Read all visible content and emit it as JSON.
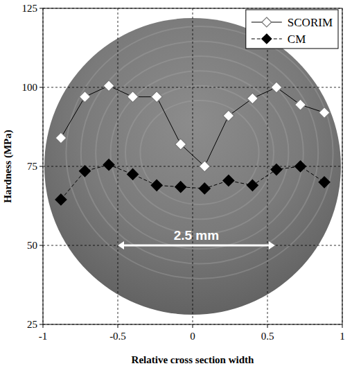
{
  "chart_data": {
    "type": "line",
    "x_label": "Relative cross section width",
    "y_label": "Hardness (MPa)",
    "x": [
      -0.88,
      -0.72,
      -0.56,
      -0.4,
      -0.24,
      -0.08,
      0.08,
      0.24,
      0.4,
      0.56,
      0.72,
      0.88
    ],
    "series": [
      {
        "name": "SCORIM",
        "color": "#ffffff",
        "marker": "diamond",
        "line_style": "solid",
        "values": [
          84,
          97,
          100.5,
          97,
          97,
          82,
          75,
          91,
          96.5,
          100,
          94.5,
          92
        ]
      },
      {
        "name": "CM",
        "color": "#000000",
        "marker": "diamond",
        "line_style": "dashed",
        "values": [
          64.5,
          73.5,
          75.5,
          72.5,
          69,
          68.5,
          68,
          70.5,
          69,
          74,
          75,
          70
        ]
      }
    ],
    "xlim": [
      -1,
      1
    ],
    "xticks": [
      -1,
      -0.5,
      0,
      0.5,
      1
    ],
    "ylim": [
      25,
      125
    ],
    "yticks": [
      25,
      50,
      75,
      100,
      125
    ],
    "grid": true,
    "legend": "upper right",
    "annotations": [
      {
        "text": "2.5 mm",
        "x_start": -0.5,
        "x_end": 0.55,
        "y": 50
      }
    ]
  }
}
